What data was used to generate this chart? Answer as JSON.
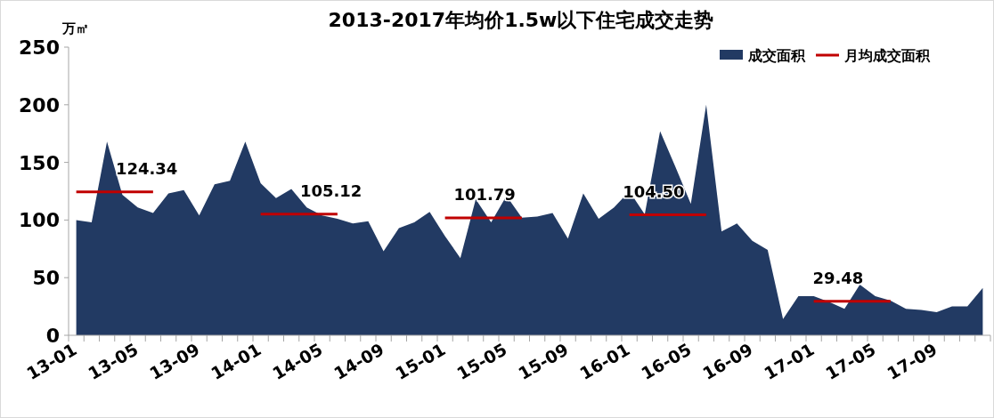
{
  "chart_data": {
    "type": "area",
    "title": "2013-2017年均价1.5w以下住宅成交走势",
    "ylabel": "万㎡",
    "categories": [
      "13-01",
      null,
      null,
      null,
      "13-05",
      null,
      null,
      null,
      "13-09",
      null,
      null,
      null,
      "14-01",
      null,
      null,
      null,
      "14-05",
      null,
      null,
      null,
      "14-09",
      null,
      null,
      null,
      "15-01",
      null,
      null,
      null,
      "15-05",
      null,
      null,
      null,
      "15-09",
      null,
      null,
      null,
      "16-01",
      null,
      null,
      null,
      "16-05",
      null,
      null,
      null,
      "16-09",
      null,
      null,
      null,
      "17-01",
      null,
      null,
      null,
      "17-05",
      null,
      null,
      null,
      "17-09",
      null,
      null,
      null
    ],
    "ylim": [
      0,
      250
    ],
    "yticks": [
      0,
      50,
      100,
      150,
      200,
      250
    ],
    "grid": false,
    "legend": "top right",
    "series": [
      {
        "name": "成交面积",
        "color": "#223a63",
        "values": [
          100,
          98,
          168,
          122,
          111,
          106,
          123,
          126,
          104,
          131,
          134,
          168,
          132,
          119,
          127,
          111,
          104,
          101,
          97,
          99,
          73,
          93,
          98,
          107,
          86,
          67,
          118,
          98,
          121,
          102,
          103,
          106,
          84,
          123,
          101,
          111,
          125,
          105,
          177,
          146,
          114,
          200,
          90,
          97,
          82,
          74,
          14,
          34,
          34,
          29,
          23,
          44,
          34,
          30,
          23,
          22,
          20,
          25,
          25,
          41
        ]
      },
      {
        "name": "月均成交面积",
        "type": "line",
        "color": "#c00000",
        "values": [
          124.34,
          124.34,
          124.34,
          124.34,
          124.34,
          124.34,
          null,
          null,
          null,
          null,
          null,
          null,
          105.12,
          105.12,
          105.12,
          105.12,
          105.12,
          105.12,
          null,
          null,
          null,
          null,
          null,
          null,
          101.79,
          101.79,
          101.79,
          101.79,
          101.79,
          101.79,
          null,
          null,
          null,
          null,
          null,
          null,
          104.5,
          104.5,
          104.5,
          104.5,
          104.5,
          104.5,
          null,
          null,
          null,
          null,
          null,
          null,
          29.48,
          29.48,
          29.48,
          29.48,
          29.48,
          29.48,
          null,
          null,
          null,
          null,
          null,
          null
        ],
        "value_labels": [
          null,
          null,
          null,
          null,
          "124.34",
          null,
          null,
          null,
          null,
          null,
          null,
          null,
          null,
          null,
          null,
          null,
          "105.12",
          null,
          null,
          null,
          null,
          null,
          null,
          null,
          null,
          null,
          "101.79",
          null,
          null,
          null,
          null,
          null,
          null,
          null,
          null,
          null,
          null,
          "104.50",
          null,
          null,
          null,
          null,
          null,
          null,
          null,
          null,
          null,
          null,
          null,
          "29.48",
          null,
          null,
          null,
          null,
          null,
          null,
          null,
          null,
          null,
          null
        ]
      }
    ]
  }
}
